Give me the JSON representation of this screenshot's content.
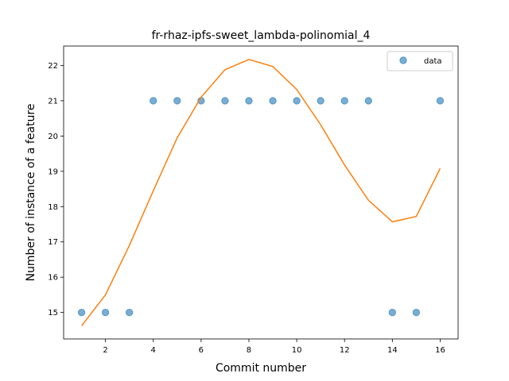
{
  "chart_data": {
    "type": "scatter",
    "title": "fr-rhaz-ipfs-sweet_lambda-polinomial_4",
    "xlabel": "Commit number",
    "ylabel": "Number of instance of a feature",
    "xlim": [
      0.25,
      16.75
    ],
    "ylim": [
      14.25,
      22.55
    ],
    "xticks": [
      2,
      4,
      6,
      8,
      10,
      12,
      14,
      16
    ],
    "yticks": [
      15,
      16,
      17,
      18,
      19,
      20,
      21,
      22
    ],
    "grid": false,
    "legend_position": "top-right",
    "series": [
      {
        "name": "data",
        "kind": "scatter",
        "color": "#1f77b4",
        "x": [
          1,
          2,
          3,
          4,
          5,
          6,
          7,
          8,
          9,
          10,
          11,
          12,
          13,
          14,
          15,
          16
        ],
        "y": [
          15,
          15,
          15,
          21,
          21,
          21,
          21,
          21,
          21,
          21,
          21,
          21,
          21,
          15,
          15,
          21
        ]
      },
      {
        "kind": "line",
        "color": "#ff7f0e",
        "x": [
          1,
          2,
          3,
          4,
          5,
          6,
          7,
          8,
          9,
          10,
          11,
          12,
          13,
          14,
          15,
          16
        ],
        "y": [
          14.62,
          15.5,
          16.9,
          18.45,
          19.95,
          21.1,
          21.88,
          22.17,
          21.97,
          21.32,
          20.32,
          19.18,
          18.18,
          17.57,
          17.72,
          19.08
        ]
      }
    ]
  }
}
